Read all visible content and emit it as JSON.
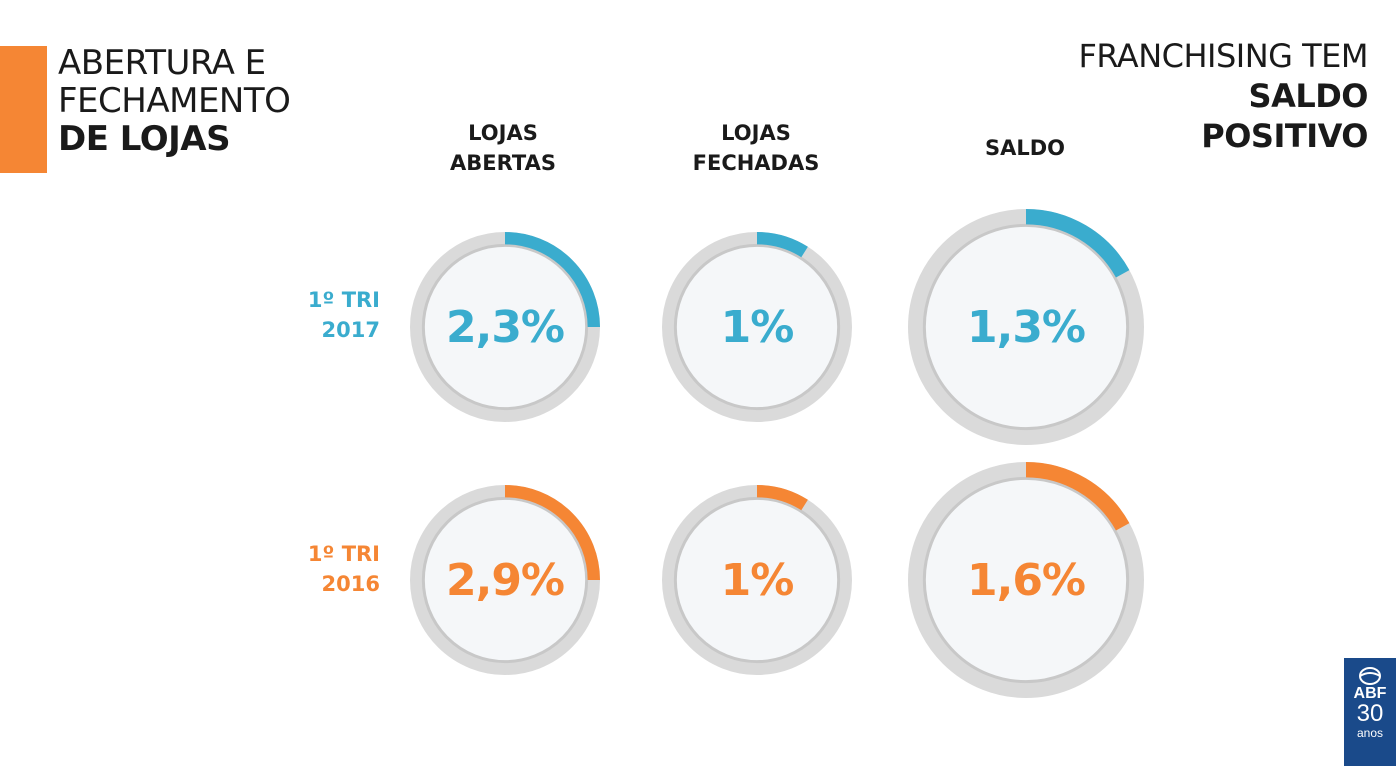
{
  "slide": {
    "title_left": {
      "line1": "ABERTURA E",
      "line2": "FECHAMENTO",
      "line3": "DE LOJAS"
    },
    "title_right": {
      "line1": "FRANCHISING TEM",
      "line2": "SALDO",
      "line3": "POSITIVO"
    }
  },
  "columns": [
    {
      "line1": "LOJAS",
      "line2": "ABERTAS"
    },
    {
      "line1": "LOJAS",
      "line2": "FECHADAS"
    },
    {
      "line1": "SALDO"
    }
  ],
  "rows": [
    {
      "line1": "1º TRI",
      "line2": "2017",
      "color": "#3AACCE",
      "values": [
        "2,3%",
        "1%",
        "1,3%"
      ],
      "fractions": [
        0.25,
        0.09,
        0.17
      ]
    },
    {
      "line1": "1º TRI",
      "line2": "2016",
      "color": "#F58634",
      "values": [
        "2,9%",
        "1%",
        "1,6%"
      ],
      "fractions": [
        0.25,
        0.09,
        0.17
      ]
    }
  ],
  "colors": {
    "accent": "#F58634",
    "ring": "#DADADA",
    "ring_inner": "#C8C8C8",
    "face": "#F5F7F9"
  },
  "logo": {
    "text": "ABF",
    "number": "30",
    "sub": "anos"
  }
}
